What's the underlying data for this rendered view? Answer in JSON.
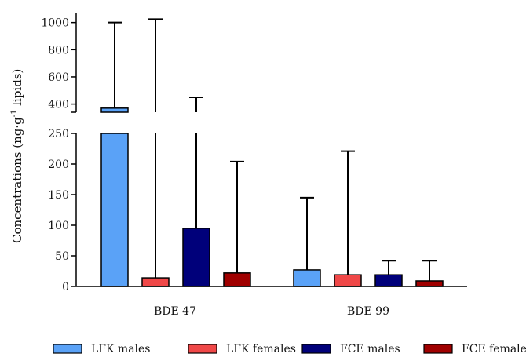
{
  "chart_data": {
    "type": "bar",
    "ylabel_main": "Concentrations (ng·g",
    "ylabel_sup": "-1",
    "ylabel_tail": " lipids)",
    "categories": [
      "BDE 47",
      "BDE 99"
    ],
    "y_broken": true,
    "ylim_lower": [
      0,
      250
    ],
    "ylim_upper": [
      340,
      1050
    ],
    "yticks_lower": [
      "0",
      "50",
      "100",
      "150",
      "200",
      "250"
    ],
    "yticks_upper": [
      "400",
      "600",
      "800",
      "1000"
    ],
    "series": [
      {
        "name": "LFK males",
        "color": "#5aa2f7",
        "values": [
          370,
          27
        ],
        "error_upper": [
          1000,
          145
        ]
      },
      {
        "name": "LFK females",
        "color": "#f04848",
        "values": [
          14,
          19
        ],
        "error_upper": [
          1025,
          221
        ]
      },
      {
        "name": "FCE males",
        "color": "#00007a",
        "values": [
          95,
          19
        ],
        "error_upper": [
          450,
          42
        ]
      },
      {
        "name": "FCE females",
        "color": "#a00000",
        "values": [
          22,
          9
        ],
        "error_upper": [
          204,
          42
        ]
      }
    ]
  }
}
